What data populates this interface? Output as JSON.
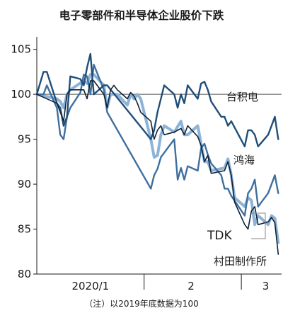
{
  "chart_data": {
    "type": "line",
    "title": "电子零部件和半导体企业股价下跌",
    "note": "（注）以2019年底数据为100",
    "x_range": [
      "2019-12-31",
      "2020-03-13"
    ],
    "x_month_labels": [
      "2020/1",
      "2",
      "3"
    ],
    "ylim": [
      80,
      106
    ],
    "yticks": [
      80,
      85,
      90,
      95,
      100,
      105
    ],
    "baseline": 100,
    "grid": false,
    "colors": {
      "taiji": "#1f4e79",
      "honhai": "#3f6f9e",
      "tdk": "#8db3d6",
      "murata": "#0d2238",
      "axis": "#1a1a1a",
      "baseline": "#555555"
    },
    "series": [
      {
        "key": "taiji",
        "name": "台积电",
        "x": [
          "2019-12-31",
          "2020-01-02",
          "2020-01-03",
          "2020-01-06",
          "2020-01-07",
          "2020-01-08",
          "2020-01-09",
          "2020-01-10",
          "2020-01-13",
          "2020-01-14",
          "2020-01-15",
          "2020-01-16",
          "2020-01-17",
          "2020-01-20",
          "2020-01-21",
          "2020-02-03",
          "2020-02-04",
          "2020-02-05",
          "2020-02-06",
          "2020-02-07",
          "2020-02-10",
          "2020-02-11",
          "2020-02-12",
          "2020-02-13",
          "2020-02-14",
          "2020-02-17",
          "2020-02-18",
          "2020-02-19",
          "2020-02-20",
          "2020-02-21",
          "2020-02-24",
          "2020-02-25",
          "2020-02-26",
          "2020-02-27",
          "2020-03-02",
          "2020-03-03",
          "2020-03-04",
          "2020-03-05",
          "2020-03-06",
          "2020-03-09",
          "2020-03-10",
          "2020-03-11",
          "2020-03-12"
        ],
        "values": [
          100,
          102.5,
          102.5,
          99,
          98.5,
          96.5,
          97.5,
          102,
          101.7,
          101,
          103,
          104.5,
          100,
          101,
          101,
          95,
          96,
          98,
          99.5,
          101,
          100,
          98.5,
          100,
          99,
          101,
          99.5,
          101.2,
          101.4,
          100.5,
          99.2,
          97.5,
          97.5,
          96.5,
          97,
          94.2,
          96,
          96,
          95.5,
          94.2,
          95.5,
          96.5,
          97.5,
          95
        ]
      },
      {
        "key": "honhai",
        "name": "鸿海",
        "x": [
          "2019-12-31",
          "2020-01-02",
          "2020-01-03",
          "2020-01-06",
          "2020-01-07",
          "2020-01-08",
          "2020-01-09",
          "2020-01-10",
          "2020-01-13",
          "2020-01-14",
          "2020-01-15",
          "2020-01-16",
          "2020-01-17",
          "2020-01-20",
          "2020-01-21",
          "2020-02-03",
          "2020-02-04",
          "2020-02-05",
          "2020-02-06",
          "2020-02-07",
          "2020-02-10",
          "2020-02-11",
          "2020-02-12",
          "2020-02-13",
          "2020-02-14",
          "2020-02-17",
          "2020-02-18",
          "2020-02-19",
          "2020-02-20",
          "2020-02-21",
          "2020-02-24",
          "2020-02-25",
          "2020-02-26",
          "2020-02-27",
          "2020-03-02",
          "2020-03-03",
          "2020-03-04",
          "2020-03-05",
          "2020-03-06",
          "2020-03-09",
          "2020-03-10",
          "2020-03-11",
          "2020-03-12"
        ],
        "values": [
          100,
          100,
          101,
          98.5,
          95.5,
          95,
          97.5,
          98.5,
          100.2,
          102.2,
          102,
          100,
          103.3,
          100.5,
          98,
          89.5,
          91,
          91.7,
          93,
          93.5,
          95,
          90.5,
          91.8,
          90.5,
          92,
          91.5,
          94,
          94.5,
          93.3,
          92.3,
          91,
          89.5,
          89.5,
          88.7,
          86.5,
          89,
          89.5,
          90.5,
          87.5,
          89,
          90,
          91,
          89
        ]
      },
      {
        "key": "tdk",
        "name": "TDK",
        "x": [
          "2019-12-31",
          "2020-01-06",
          "2020-01-07",
          "2020-01-08",
          "2020-01-09",
          "2020-01-10",
          "2020-01-14",
          "2020-01-15",
          "2020-01-16",
          "2020-01-17",
          "2020-01-20",
          "2020-01-21",
          "2020-01-22",
          "2020-01-23",
          "2020-01-24",
          "2020-01-27",
          "2020-01-28",
          "2020-01-29",
          "2020-01-30",
          "2020-01-31",
          "2020-02-03",
          "2020-02-04",
          "2020-02-05",
          "2020-02-06",
          "2020-02-07",
          "2020-02-10",
          "2020-02-12",
          "2020-02-13",
          "2020-02-14",
          "2020-02-17",
          "2020-02-18",
          "2020-02-19",
          "2020-02-20",
          "2020-02-21",
          "2020-02-25",
          "2020-02-26",
          "2020-02-27",
          "2020-02-28",
          "2020-03-02",
          "2020-03-03",
          "2020-03-04",
          "2020-03-05",
          "2020-03-06",
          "2020-03-09",
          "2020-03-10",
          "2020-03-11",
          "2020-03-12"
        ],
        "values": [
          100,
          99.5,
          99.2,
          98.5,
          100,
          100.5,
          101.5,
          101.2,
          102.2,
          102.2,
          101,
          98.5,
          100,
          100,
          100,
          98.8,
          100,
          99.5,
          100,
          99.5,
          95,
          93,
          93.2,
          95.5,
          96.5,
          95.8,
          97,
          95.5,
          95.5,
          96.5,
          94.5,
          92.5,
          92.5,
          91.5,
          91.8,
          92.8,
          91,
          88.5,
          87.5,
          88.5,
          88.2,
          85.5,
          86.5,
          85.5,
          86.5,
          86.2,
          83.5
        ]
      },
      {
        "key": "murata",
        "name": "村田制作所",
        "x": [
          "2019-12-31",
          "2020-01-06",
          "2020-01-07",
          "2020-01-08",
          "2020-01-09",
          "2020-01-10",
          "2020-01-14",
          "2020-01-15",
          "2020-01-16",
          "2020-01-17",
          "2020-01-20",
          "2020-01-21",
          "2020-01-22",
          "2020-01-23",
          "2020-01-24",
          "2020-01-27",
          "2020-01-28",
          "2020-01-29",
          "2020-01-30",
          "2020-01-31",
          "2020-02-03",
          "2020-02-04",
          "2020-02-05",
          "2020-02-06",
          "2020-02-07",
          "2020-02-10",
          "2020-02-12",
          "2020-02-13",
          "2020-02-14",
          "2020-02-17",
          "2020-02-18",
          "2020-02-19",
          "2020-02-20",
          "2020-02-21",
          "2020-02-25",
          "2020-02-26",
          "2020-02-27",
          "2020-02-28",
          "2020-03-02",
          "2020-03-03",
          "2020-03-04",
          "2020-03-05",
          "2020-03-06",
          "2020-03-09",
          "2020-03-10",
          "2020-03-11",
          "2020-03-12"
        ],
        "values": [
          100,
          99,
          98,
          97,
          100,
          100.5,
          100.5,
          99.5,
          101.5,
          101.5,
          100,
          98.5,
          100.5,
          101,
          100.5,
          99.5,
          100.2,
          99.8,
          99,
          98,
          97,
          95,
          96,
          96.5,
          95.5,
          95.8,
          96.2,
          95.5,
          96.5,
          95.3,
          94.3,
          92.5,
          93.2,
          91.2,
          91.5,
          92.5,
          91,
          88,
          85.5,
          85,
          87,
          87.5,
          85.5,
          85.8,
          86.3,
          85.7,
          82.2
        ]
      }
    ]
  }
}
